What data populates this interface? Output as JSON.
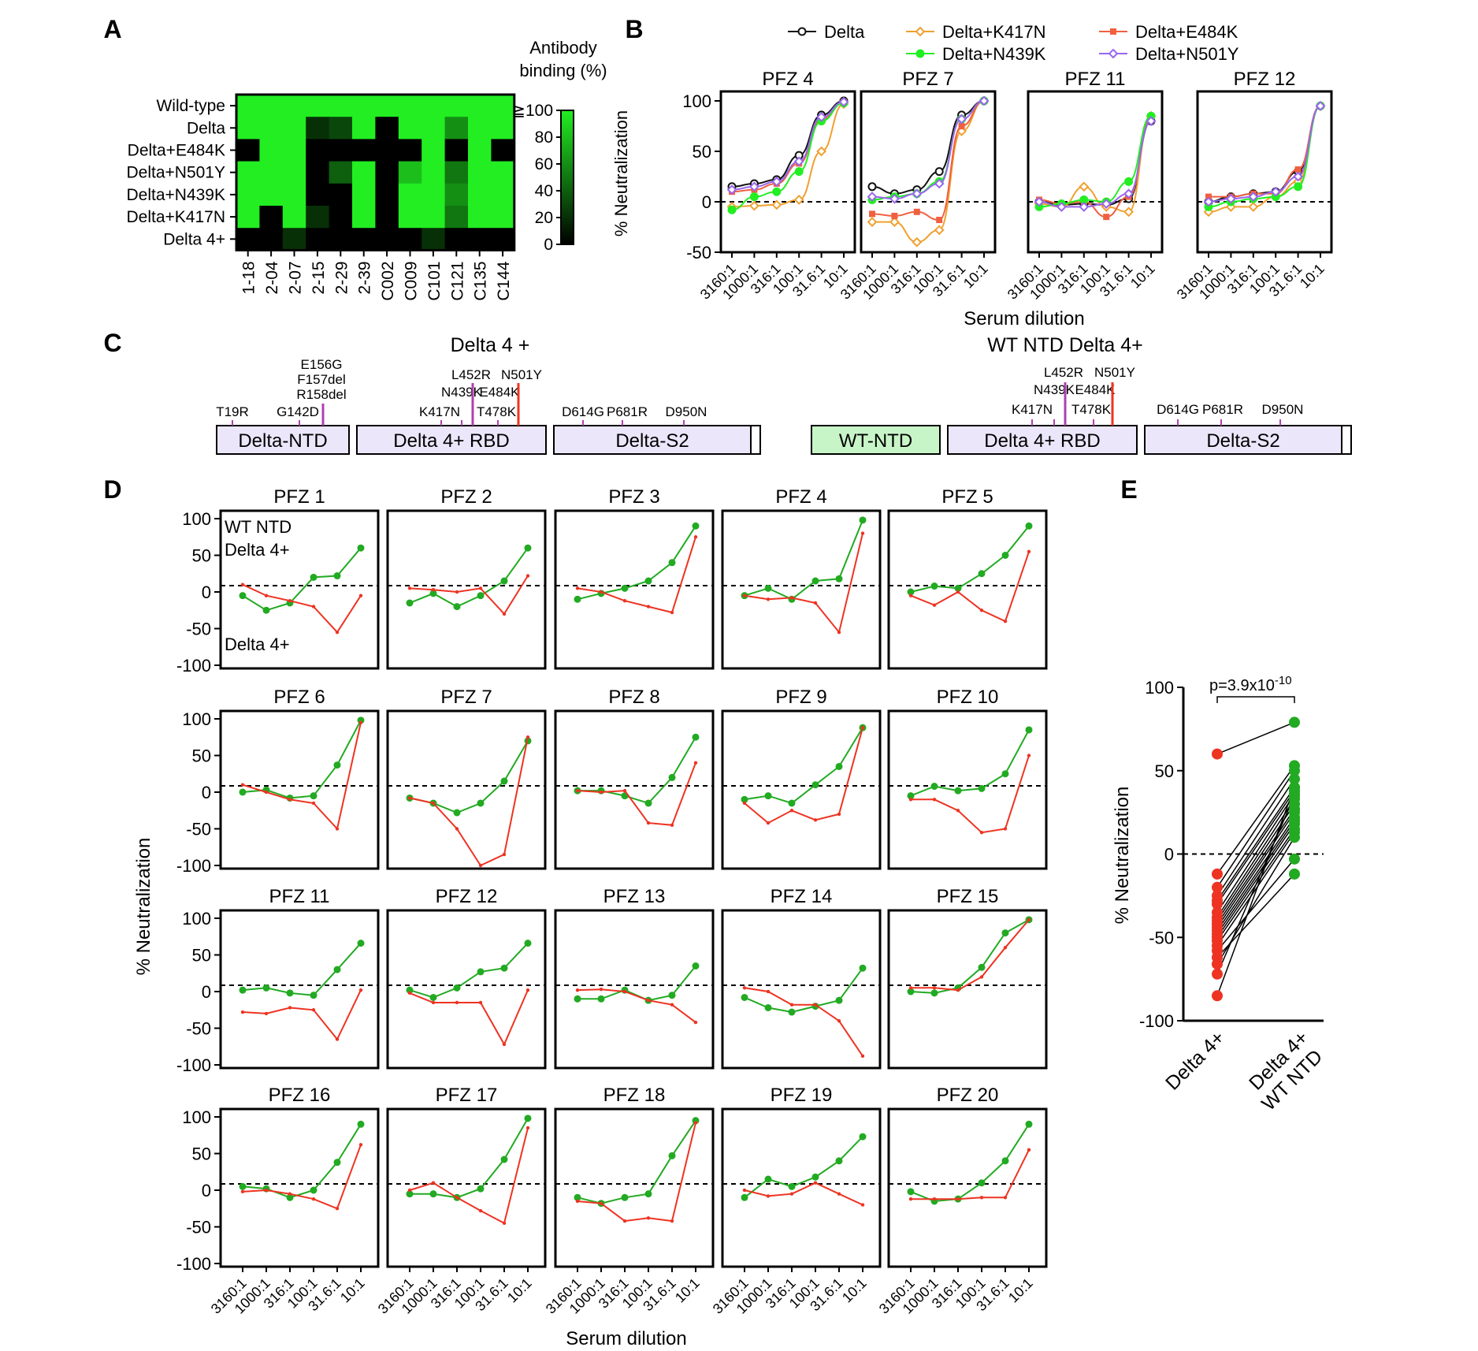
{
  "panel_labels": [
    "A",
    "B",
    "C",
    "D",
    "E"
  ],
  "colors": {
    "red": "#ee3322",
    "green": "#22aa22",
    "orange": "#f0a030",
    "bright_green": "#22ee22",
    "coral": "#f06040",
    "purple": "#9966ee",
    "black": "#111111",
    "heat_high": "#22ee22",
    "heat_low": "#000000",
    "domain_purple": "#ece6fb",
    "domain_green": "#c8f5c8"
  },
  "chart_data": [
    {
      "id": "A",
      "type": "heatmap",
      "rows": [
        "Wild-type",
        "Delta",
        "Delta+E484K",
        "Delta+N501Y",
        "Delta+N439K",
        "Delta+K417N",
        "Delta 4+"
      ],
      "columns": [
        "1-18",
        "2-04",
        "2-07",
        "2-15",
        "2-29",
        "2-39",
        "C002",
        "C009",
        "C101",
        "C121",
        "C135",
        "C144"
      ],
      "values": [
        [
          100,
          100,
          100,
          100,
          100,
          100,
          100,
          100,
          100,
          100,
          100,
          100
        ],
        [
          100,
          100,
          100,
          20,
          30,
          100,
          0,
          100,
          100,
          60,
          100,
          100
        ],
        [
          0,
          100,
          100,
          0,
          0,
          0,
          0,
          0,
          100,
          0,
          100,
          0
        ],
        [
          100,
          100,
          100,
          0,
          40,
          100,
          0,
          80,
          100,
          50,
          100,
          100
        ],
        [
          100,
          100,
          100,
          0,
          0,
          100,
          0,
          100,
          100,
          60,
          100,
          100
        ],
        [
          100,
          0,
          100,
          20,
          0,
          100,
          0,
          100,
          100,
          50,
          100,
          100
        ],
        [
          0,
          0,
          20,
          0,
          0,
          0,
          0,
          0,
          20,
          0,
          0,
          0
        ]
      ],
      "colorbar_title": [
        "Antibody",
        "binding (%)"
      ],
      "colorbar_ticks": [
        "≧100",
        "80",
        "60",
        "40",
        "20",
        "0"
      ]
    },
    {
      "id": "B",
      "type": "line",
      "xlabel": "Serum dilution",
      "ylabel": "% Neutralization",
      "x_ticks": [
        "3160:1",
        "1000:1",
        "316:1",
        "100:1",
        "31.6:1",
        "10:1"
      ],
      "y_ticks": [
        "100",
        "50",
        "0",
        "-50"
      ],
      "ylim": [
        -50,
        100
      ],
      "legend": [
        "Delta",
        "Delta+K417N",
        "Delta+E484K",
        "Delta+N439K",
        "Delta+N501Y"
      ],
      "panels": [
        {
          "title": "PFZ 4",
          "series": [
            {
              "name": "Delta",
              "values": [
                15,
                18,
                22,
                46,
                86,
                100
              ]
            },
            {
              "name": "Delta+K417N",
              "values": [
                -5,
                -4,
                -3,
                2,
                50,
                97
              ]
            },
            {
              "name": "Delta+E484K",
              "values": [
                10,
                12,
                18,
                38,
                82,
                99
              ]
            },
            {
              "name": "Delta+N439K",
              "values": [
                -8,
                5,
                10,
                30,
                80,
                98
              ]
            },
            {
              "name": "Delta+N501Y",
              "values": [
                12,
                15,
                20,
                40,
                84,
                99
              ]
            }
          ]
        },
        {
          "title": "PFZ 7",
          "series": [
            {
              "name": "Delta",
              "values": [
                15,
                8,
                12,
                30,
                86,
                100
              ]
            },
            {
              "name": "Delta+K417N",
              "values": [
                -20,
                -20,
                -40,
                -28,
                70,
                100
              ]
            },
            {
              "name": "Delta+E484K",
              "values": [
                -12,
                -14,
                -10,
                -18,
                75,
                100
              ]
            },
            {
              "name": "Delta+N439K",
              "values": [
                2,
                5,
                8,
                20,
                82,
                100
              ]
            },
            {
              "name": "Delta+N501Y",
              "values": [
                5,
                3,
                8,
                18,
                82,
                100
              ]
            }
          ]
        },
        {
          "title": "PFZ 11",
          "series": [
            {
              "name": "Delta",
              "values": [
                0,
                -3,
                -2,
                -3,
                3,
                80
              ]
            },
            {
              "name": "Delta+K417N",
              "values": [
                -2,
                -5,
                15,
                -5,
                -10,
                85
              ]
            },
            {
              "name": "Delta+E484K",
              "values": [
                2,
                -2,
                0,
                -15,
                5,
                82
              ]
            },
            {
              "name": "Delta+N439K",
              "values": [
                -5,
                -2,
                2,
                0,
                20,
                85
              ]
            },
            {
              "name": "Delta+N501Y",
              "values": [
                0,
                -5,
                -5,
                -2,
                8,
                80
              ]
            }
          ]
        },
        {
          "title": "PFZ 12",
          "series": [
            {
              "name": "Delta",
              "values": [
                0,
                5,
                8,
                10,
                30,
                95
              ]
            },
            {
              "name": "Delta+K417N",
              "values": [
                -10,
                -5,
                -5,
                5,
                20,
                95
              ]
            },
            {
              "name": "Delta+E484K",
              "values": [
                5,
                5,
                8,
                8,
                32,
                95
              ]
            },
            {
              "name": "Delta+N439K",
              "values": [
                -5,
                0,
                3,
                5,
                15,
                95
              ]
            },
            {
              "name": "Delta+N501Y",
              "values": [
                0,
                3,
                5,
                10,
                25,
                95
              ]
            }
          ]
        }
      ]
    },
    {
      "id": "D",
      "type": "line",
      "xlabel": "Serum dilution",
      "ylabel": "% Neutralization",
      "x_ticks": [
        "3160:1",
        "1000:1",
        "316:1",
        "100:1",
        "31.6:1",
        "10:1"
      ],
      "y_ticks": [
        "100",
        "50",
        "0",
        "-50",
        "-100"
      ],
      "ylim": [
        -100,
        100
      ],
      "series_labels": [
        "WT NTD\nDelta 4+",
        "Delta 4+"
      ],
      "panels": [
        {
          "title": "PFZ 1",
          "green": [
            -5,
            -25,
            -15,
            20,
            22,
            60
          ],
          "red": [
            10,
            -5,
            -12,
            -20,
            -55,
            -5
          ]
        },
        {
          "title": "PFZ 2",
          "green": [
            -15,
            -2,
            -20,
            -5,
            15,
            60
          ],
          "red": [
            5,
            3,
            0,
            5,
            -30,
            22
          ]
        },
        {
          "title": "PFZ 3",
          "green": [
            -10,
            -2,
            5,
            15,
            40,
            90
          ],
          "red": [
            5,
            0,
            -12,
            -20,
            -28,
            75
          ]
        },
        {
          "title": "PFZ 4",
          "green": [
            -5,
            5,
            -10,
            15,
            18,
            98
          ],
          "red": [
            -5,
            -10,
            -8,
            -15,
            -55,
            80
          ]
        },
        {
          "title": "PFZ 5",
          "green": [
            0,
            8,
            5,
            25,
            50,
            90
          ],
          "red": [
            -5,
            -18,
            0,
            -25,
            -40,
            55
          ]
        },
        {
          "title": "PFZ 6",
          "green": [
            0,
            3,
            -8,
            -5,
            37,
            98
          ],
          "red": [
            10,
            0,
            -10,
            -15,
            -50,
            95
          ]
        },
        {
          "title": "PFZ 7",
          "green": [
            -8,
            -15,
            -28,
            -15,
            15,
            70
          ],
          "red": [
            -8,
            -15,
            -50,
            -100,
            -85,
            75
          ]
        },
        {
          "title": "PFZ 8",
          "green": [
            2,
            2,
            -5,
            -15,
            20,
            75
          ],
          "red": [
            2,
            0,
            2,
            -42,
            -45,
            40
          ]
        },
        {
          "title": "PFZ 9",
          "green": [
            -10,
            -5,
            -15,
            10,
            35,
            88
          ],
          "red": [
            -15,
            -42,
            -25,
            -38,
            -30,
            88
          ]
        },
        {
          "title": "PFZ 10",
          "green": [
            -5,
            8,
            2,
            5,
            25,
            85
          ],
          "red": [
            -10,
            -10,
            -25,
            -55,
            -50,
            50
          ]
        },
        {
          "title": "PFZ 11",
          "green": [
            2,
            5,
            -2,
            -5,
            30,
            66
          ],
          "red": [
            -28,
            -30,
            -22,
            -25,
            -65,
            2
          ]
        },
        {
          "title": "PFZ 12",
          "green": [
            2,
            -8,
            5,
            27,
            32,
            66
          ],
          "red": [
            -2,
            -15,
            -15,
            -15,
            -72,
            2
          ]
        },
        {
          "title": "PFZ 13",
          "green": [
            -10,
            -10,
            2,
            -12,
            -5,
            35
          ],
          "red": [
            2,
            3,
            0,
            -12,
            -18,
            -42
          ]
        },
        {
          "title": "PFZ 14",
          "green": [
            -8,
            -22,
            -28,
            -20,
            -12,
            32
          ],
          "red": [
            5,
            0,
            -18,
            -18,
            -40,
            -88
          ]
        },
        {
          "title": "PFZ 15",
          "green": [
            0,
            -2,
            5,
            33,
            80,
            98
          ],
          "red": [
            5,
            5,
            2,
            20,
            60,
            98
          ]
        },
        {
          "title": "PFZ 16",
          "green": [
            5,
            2,
            -10,
            0,
            38,
            90
          ],
          "red": [
            -2,
            0,
            -5,
            -12,
            -25,
            62
          ]
        },
        {
          "title": "PFZ 17",
          "green": [
            -5,
            -5,
            -10,
            2,
            42,
            98
          ],
          "red": [
            0,
            10,
            -10,
            -28,
            -45,
            85
          ]
        },
        {
          "title": "PFZ 18",
          "green": [
            -10,
            -18,
            -10,
            -5,
            47,
            95
          ],
          "red": [
            -15,
            -18,
            -42,
            -38,
            -42,
            92
          ]
        },
        {
          "title": "PFZ 19",
          "green": [
            -10,
            15,
            5,
            18,
            40,
            73
          ],
          "red": [
            0,
            -8,
            -5,
            10,
            -5,
            -20
          ]
        },
        {
          "title": "PFZ 20",
          "green": [
            -2,
            -15,
            -12,
            10,
            40,
            90
          ],
          "red": [
            -12,
            -12,
            -12,
            -10,
            -10,
            55
          ]
        }
      ]
    },
    {
      "id": "E",
      "type": "scatter",
      "ylabel": "% Neutralization",
      "y_ticks": [
        "100",
        "50",
        "0",
        "-50",
        "-100"
      ],
      "ylim": [
        -100,
        100
      ],
      "categories": [
        "Delta 4+",
        "Delta 4+\nWT NTD"
      ],
      "p_value": {
        "prefix": "p=3.9x10",
        "exponent": "-10"
      },
      "pairs": [
        [
          60,
          79
        ],
        [
          -12,
          53
        ],
        [
          -20,
          50
        ],
        [
          -25,
          45
        ],
        [
          -28,
          40
        ],
        [
          -30,
          38
        ],
        [
          -35,
          36
        ],
        [
          -38,
          33
        ],
        [
          -40,
          30
        ],
        [
          -42,
          27
        ],
        [
          -44,
          25
        ],
        [
          -46,
          22
        ],
        [
          -48,
          20
        ],
        [
          -50,
          18
        ],
        [
          -52,
          15
        ],
        [
          -55,
          13
        ],
        [
          -58,
          -3
        ],
        [
          -62,
          -12
        ],
        [
          -66,
          10
        ],
        [
          -72,
          35
        ],
        [
          -85,
          40
        ]
      ]
    }
  ],
  "panel_c": {
    "left": {
      "title": "Delta 4 +",
      "domains": [
        "Delta-NTD",
        "Delta 4+ RBD",
        "Delta-S2"
      ],
      "mutations": [
        {
          "label": "T19R",
          "color": "black"
        },
        {
          "label": "G142D",
          "color": "black"
        },
        {
          "label": "E156G",
          "color": "black"
        },
        {
          "label": "F157del",
          "color": "black"
        },
        {
          "label": "R158del",
          "color": "black"
        },
        {
          "label": "K417N",
          "color": "red"
        },
        {
          "label": "N439K",
          "color": "red"
        },
        {
          "label": "L452R",
          "color": "black"
        },
        {
          "label": "E484K",
          "color": "red"
        },
        {
          "label": "T478K",
          "color": "black"
        },
        {
          "label": "N501Y",
          "color": "red"
        },
        {
          "label": "D614G",
          "color": "black"
        },
        {
          "label": "P681R",
          "color": "black"
        },
        {
          "label": "D950N",
          "color": "black"
        }
      ]
    },
    "right": {
      "title": "WT NTD Delta 4+",
      "domains": [
        "WT-NTD",
        "Delta 4+ RBD",
        "Delta-S2"
      ],
      "mutations": [
        {
          "label": "K417N",
          "color": "red"
        },
        {
          "label": "N439K",
          "color": "red"
        },
        {
          "label": "L452R",
          "color": "black"
        },
        {
          "label": "E484K",
          "color": "red"
        },
        {
          "label": "T478K",
          "color": "black"
        },
        {
          "label": "N501Y",
          "color": "red"
        },
        {
          "label": "D614G",
          "color": "black"
        },
        {
          "label": "P681R",
          "color": "black"
        },
        {
          "label": "D950N",
          "color": "black"
        }
      ]
    }
  }
}
